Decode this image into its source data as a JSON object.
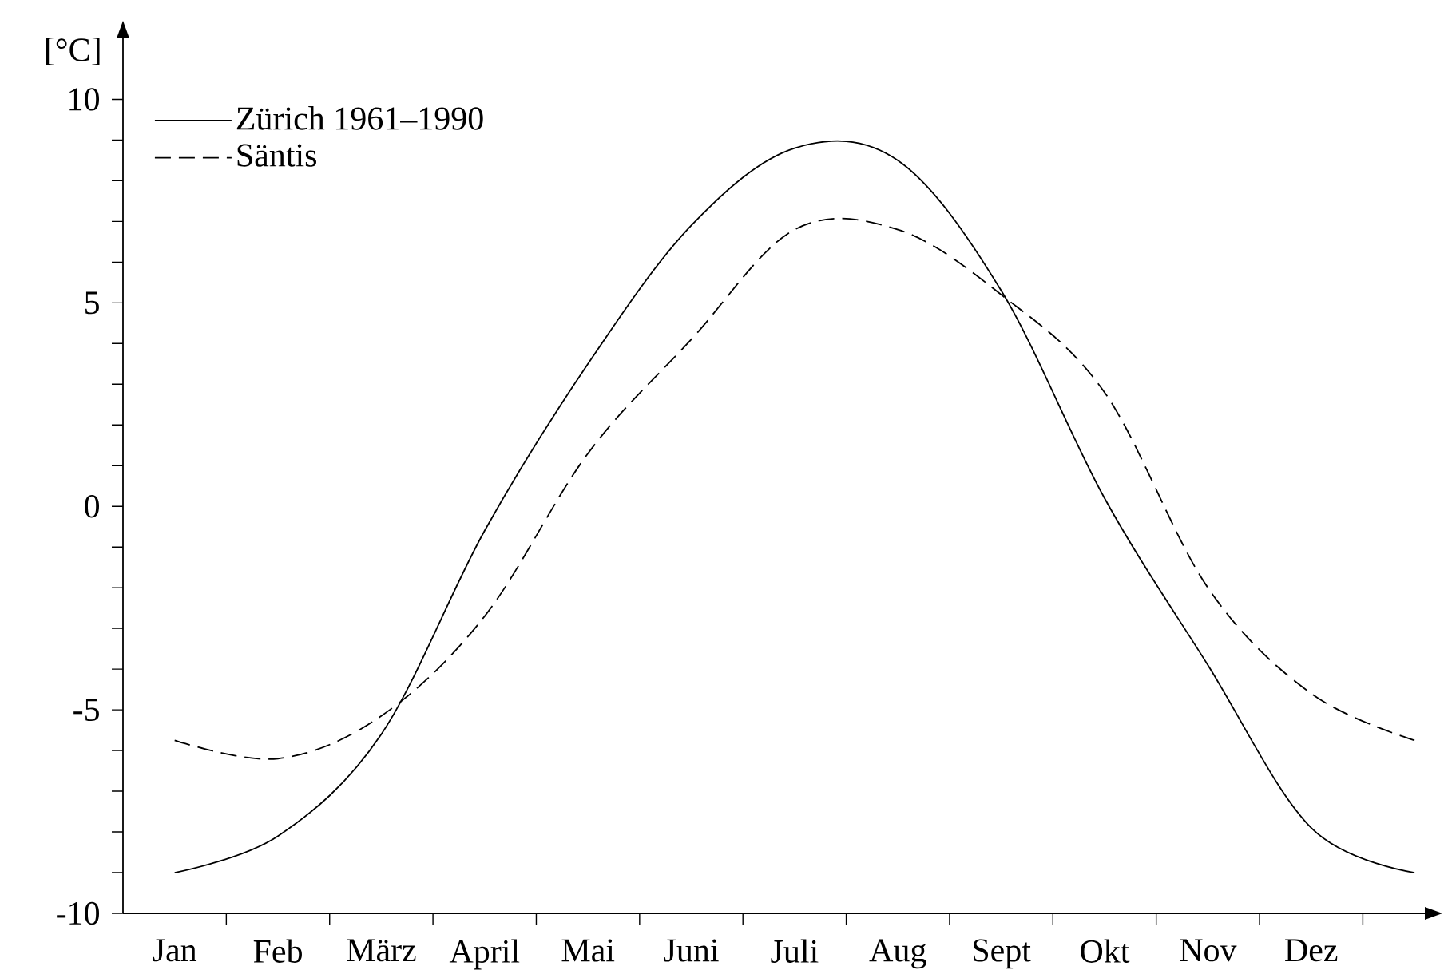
{
  "chart_data": {
    "type": "line",
    "ylabel": "[°C]",
    "legend": "top left",
    "categories": [
      "Jan",
      "Feb",
      "März",
      "April",
      "Mai",
      "Juni",
      "Juli",
      "Aug",
      "Sept",
      "Okt",
      "Nov",
      "Dez",
      null
    ],
    "ylim": [
      -10,
      11.5
    ],
    "yticks": [
      -10,
      -5,
      0,
      5,
      10,
      {
        "value": -9,
        "label": null
      },
      {
        "value": -8,
        "label": null
      },
      {
        "value": -7,
        "label": null
      },
      {
        "value": -6,
        "label": null
      },
      {
        "value": -4,
        "label": null
      },
      {
        "value": -3,
        "label": null
      },
      {
        "value": -2,
        "label": null
      },
      {
        "value": -1,
        "label": null
      },
      {
        "value": 1,
        "label": null
      },
      {
        "value": 2,
        "label": null
      },
      {
        "value": 3,
        "label": null
      },
      {
        "value": 4,
        "label": null
      },
      {
        "value": 6,
        "label": null
      },
      {
        "value": 7,
        "label": null
      },
      {
        "value": 8,
        "label": null
      },
      {
        "value": 9,
        "label": null
      }
    ],
    "series": [
      {
        "name": "Zürich 1961–1990",
        "color": "#000000",
        "line_style": "solid",
        "values": [
          -9.0,
          -8.1,
          -5.6,
          -0.6,
          3.5,
          6.9,
          8.8,
          8.5,
          5.3,
          0.2,
          -3.9,
          -7.9,
          -9.0
        ]
      },
      {
        "name": "Säntis",
        "color": "#000000",
        "line_style": "dashed",
        "values": [
          -5.75,
          -6.2,
          -5.15,
          -2.7,
          1.3,
          4.1,
          6.8,
          6.8,
          5.2,
          2.8,
          -2.0,
          -4.6,
          -5.75
        ]
      }
    ]
  }
}
